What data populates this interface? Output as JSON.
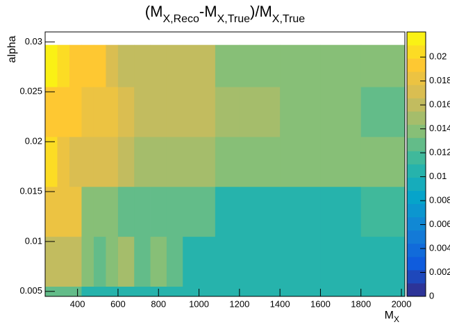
{
  "chart_data": {
    "type": "heatmap",
    "title": [
      "(M",
      "X,Reco",
      "-M",
      "X,True",
      ")/M",
      "X,True"
    ],
    "x_label": [
      "M",
      "X"
    ],
    "y_label": "alpha",
    "x_edges": [
      240,
      300,
      360,
      420,
      480,
      540,
      600,
      680,
      760,
      840,
      920,
      1000,
      1080,
      1200,
      1400,
      1600,
      1800,
      2017
    ],
    "y_edges": [
      0.0045,
      0.0055,
      0.0105,
      0.0155,
      0.0205,
      0.0255,
      0.0297
    ],
    "z": [
      [
        0.013,
        0.013,
        0.013,
        0.011,
        0.011,
        0.011,
        0.011,
        0.011,
        0.011,
        0.01,
        0.01,
        0.01,
        0.01,
        0.01,
        0.01,
        0.01,
        0.01
      ],
      [
        0.016,
        0.016,
        0.016,
        0.014,
        0.013,
        0.014,
        0.015,
        0.013,
        0.014,
        0.013,
        0.011,
        0.011,
        0.011,
        0.011,
        0.011,
        0.011,
        0.011
      ],
      [
        0.018,
        0.018,
        0.018,
        0.014,
        0.014,
        0.014,
        0.013,
        0.013,
        0.013,
        0.013,
        0.013,
        0.013,
        0.011,
        0.011,
        0.011,
        0.011,
        0.012
      ],
      [
        0.02,
        0.018,
        0.017,
        0.017,
        0.017,
        0.017,
        0.016,
        0.015,
        0.015,
        0.015,
        0.015,
        0.015,
        0.014,
        0.014,
        0.014,
        0.014,
        0.014
      ],
      [
        0.019,
        0.019,
        0.019,
        0.018,
        0.018,
        0.018,
        0.017,
        0.016,
        0.016,
        0.016,
        0.016,
        0.016,
        0.015,
        0.015,
        0.014,
        0.014,
        0.013
      ],
      [
        0.021,
        0.02,
        0.019,
        0.019,
        0.019,
        0.017,
        0.016,
        0.016,
        0.016,
        0.016,
        0.016,
        0.016,
        0.014,
        0.014,
        0.014,
        0.014,
        0.014
      ]
    ],
    "xlim": [
      240,
      2017
    ],
    "xticks": [
      400,
      600,
      800,
      1000,
      1200,
      1400,
      1600,
      1800,
      2000
    ],
    "ylim": [
      0.0045,
      0.031
    ],
    "yticks": [
      0.005,
      0.01,
      0.015,
      0.02,
      0.025,
      0.03
    ],
    "zlim": [
      0,
      0.0221
    ],
    "zticks": [
      0,
      0.002,
      0.004,
      0.006,
      0.008,
      0.01,
      0.012,
      0.014,
      0.016,
      0.018,
      0.02
    ],
    "colormap": [
      "#352a87",
      "#0f5cdd",
      "#1481d6",
      "#06a4ca",
      "#2eb7a4",
      "#87bf77",
      "#d1bb59",
      "#fec832",
      "#f9fb0e"
    ]
  }
}
